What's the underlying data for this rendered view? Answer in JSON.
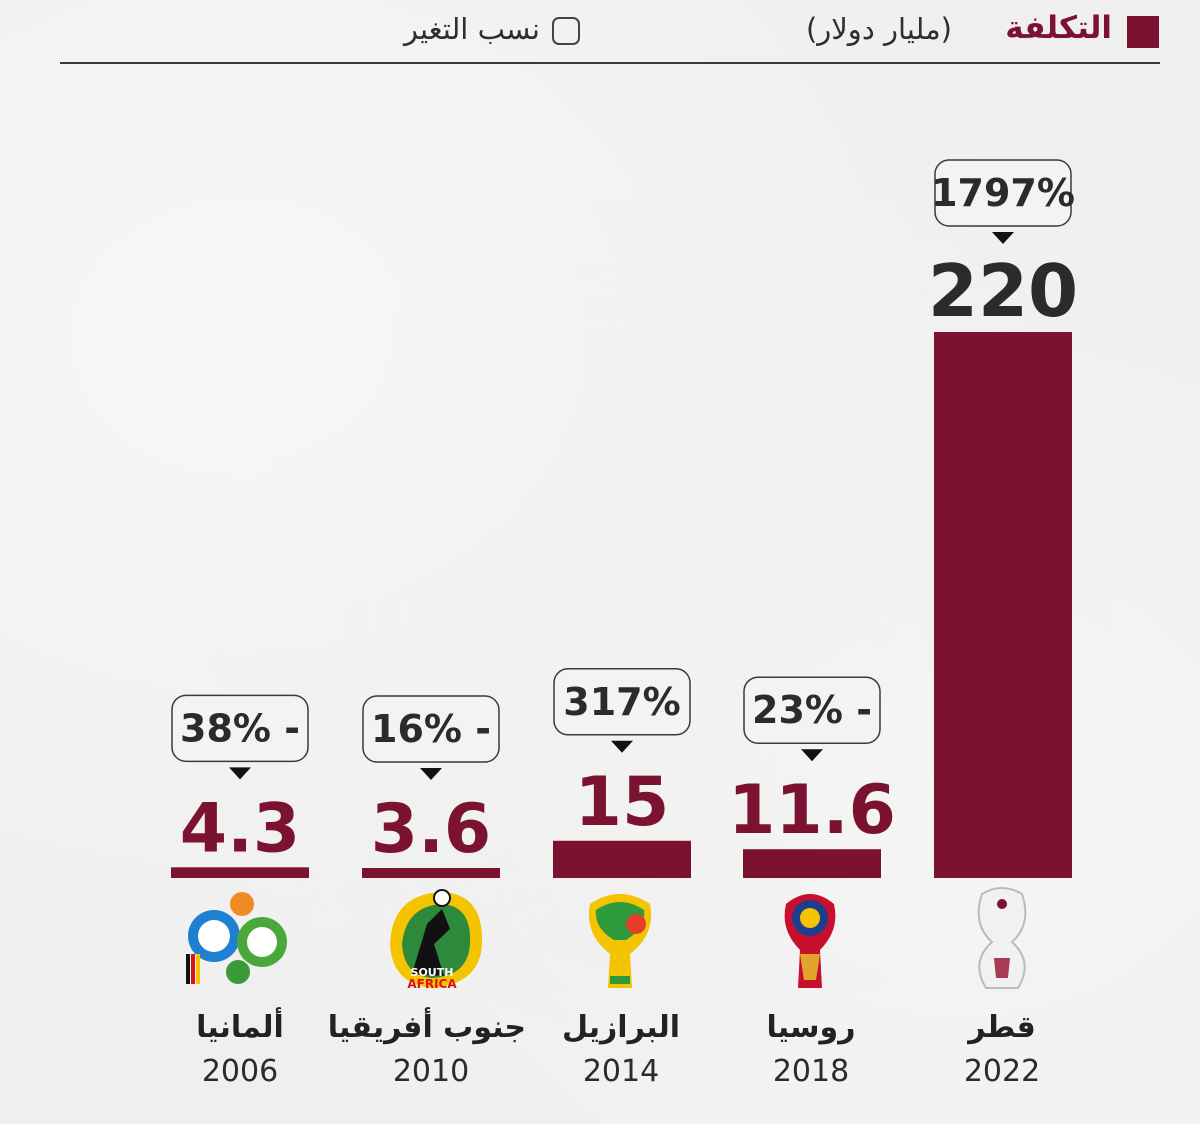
{
  "legend": {
    "cost_label": "التكلفة",
    "unit_label": "(مليار دولار)",
    "change_label": "نسب التغير"
  },
  "colors": {
    "bar": "#7b1330",
    "bubble_border": "#3a3a3a",
    "bubble_fill": "#f3f3f3",
    "text_dark": "#2b2b2b"
  },
  "chart_data": {
    "type": "bar",
    "categories": [
      "ألمانيا",
      "جنوب أفريقيا",
      "البرازيل",
      "روسيا",
      "قطر"
    ],
    "years": [
      "2006",
      "2010",
      "2014",
      "2018",
      "2022"
    ],
    "values": [
      4.3,
      3.6,
      15,
      11.6,
      220
    ],
    "value_labels": [
      "4.3",
      "3.6",
      "15",
      "11.6",
      "220"
    ],
    "change_labels": [
      "- 38%",
      "- 16%",
      "317%",
      "- 23%",
      "1797%"
    ],
    "logos": [
      "germany-2006-logo",
      "south-africa-2010-logo",
      "brazil-2014-logo",
      "russia-2018-logo",
      "qatar-2022-logo"
    ],
    "title": "",
    "xlabel": "",
    "ylabel": "",
    "ylim": [
      0,
      220
    ],
    "grid": false,
    "legend_position": "top"
  }
}
